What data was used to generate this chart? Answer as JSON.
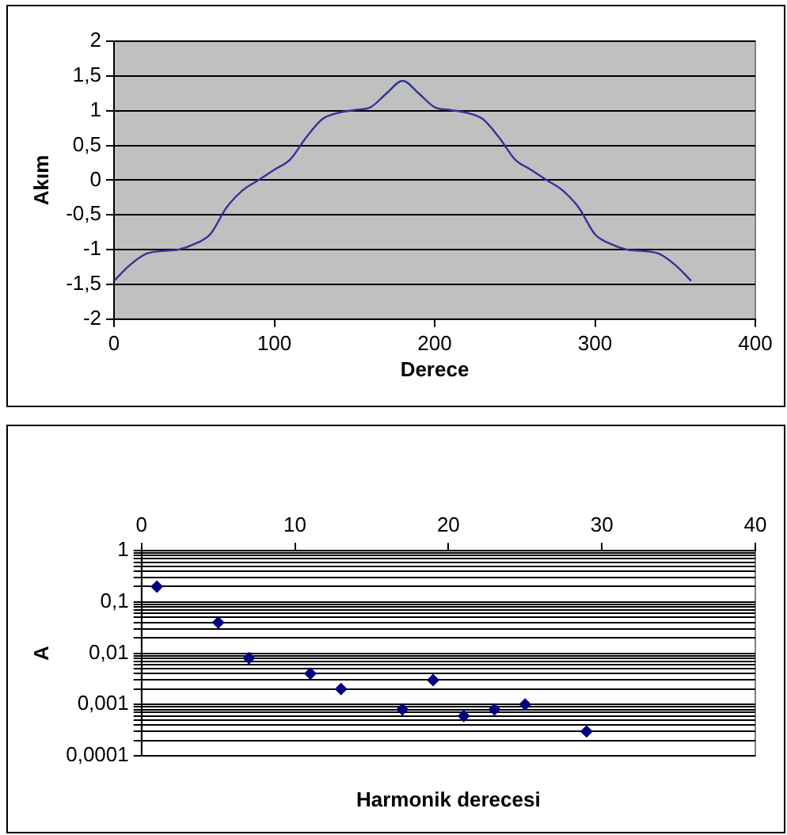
{
  "chart_data": [
    {
      "type": "line",
      "xlabel": "Derece",
      "ylabel": "Akım",
      "grid": "y",
      "legend": false,
      "marker": "none",
      "line_style": "solid",
      "xlim": [
        0,
        400
      ],
      "xticks": [
        0,
        100,
        200,
        300,
        400
      ],
      "ylim": [
        -2,
        2
      ],
      "yticks": [
        {
          "value": -2,
          "label": "-2"
        },
        {
          "value": -1.5,
          "label": "-1,5"
        },
        {
          "value": -1,
          "label": "-1"
        },
        {
          "value": -0.5,
          "label": "-0,5"
        },
        {
          "value": 0,
          "label": "0"
        },
        {
          "value": 0.5,
          "label": "0,5"
        },
        {
          "value": 1,
          "label": "1"
        },
        {
          "value": 1.5,
          "label": "1,5"
        },
        {
          "value": 2,
          "label": "2"
        }
      ],
      "x": [
        0,
        10,
        20,
        30,
        40,
        50,
        60,
        70,
        80,
        90,
        100,
        110,
        120,
        130,
        140,
        150,
        160,
        170,
        180,
        190,
        200,
        210,
        220,
        230,
        240,
        250,
        260,
        270,
        280,
        290,
        300,
        310,
        320,
        330,
        340,
        350,
        360
      ],
      "series": [
        {
          "color": "#333399",
          "values": [
            -1.45,
            -1.22,
            -1.06,
            -1.02,
            -1.0,
            -0.92,
            -0.78,
            -0.4,
            -0.15,
            0,
            0.15,
            0.3,
            0.62,
            0.88,
            0.97,
            1.01,
            1.05,
            1.25,
            1.43,
            1.25,
            1.05,
            1.01,
            0.97,
            0.88,
            0.62,
            0.3,
            0.15,
            0,
            -0.15,
            -0.4,
            -0.78,
            -0.92,
            -1.0,
            -1.02,
            -1.06,
            -1.22,
            -1.45
          ]
        }
      ]
    },
    {
      "type": "scatter",
      "xlabel": "Harmonik derecesi",
      "ylabel": "A",
      "grid": "y",
      "legend": false,
      "marker": "diamond",
      "log": "y",
      "xlim": [
        0,
        40
      ],
      "xticks": [
        0,
        10,
        20,
        30,
        40
      ],
      "ylim": [
        0.0001,
        1
      ],
      "yticks": [
        {
          "value": 0.0001,
          "label": "0,0001"
        },
        {
          "value": 0.0002,
          "label": null
        },
        {
          "value": 0.0003,
          "label": null
        },
        {
          "value": 0.0004,
          "label": null
        },
        {
          "value": 0.0005,
          "label": null
        },
        {
          "value": 0.0006,
          "label": null
        },
        {
          "value": 0.0007,
          "label": null
        },
        {
          "value": 0.0008,
          "label": null
        },
        {
          "value": 0.0009,
          "label": null
        },
        {
          "value": 0.001,
          "label": "0,001"
        },
        {
          "value": 0.002,
          "label": null
        },
        {
          "value": 0.003,
          "label": null
        },
        {
          "value": 0.004,
          "label": null
        },
        {
          "value": 0.005,
          "label": null
        },
        {
          "value": 0.006,
          "label": null
        },
        {
          "value": 0.007,
          "label": null
        },
        {
          "value": 0.008,
          "label": null
        },
        {
          "value": 0.009,
          "label": null
        },
        {
          "value": 0.01,
          "label": "0,01"
        },
        {
          "value": 0.02,
          "label": null
        },
        {
          "value": 0.03,
          "label": null
        },
        {
          "value": 0.04,
          "label": null
        },
        {
          "value": 0.05,
          "label": null
        },
        {
          "value": 0.06,
          "label": null
        },
        {
          "value": 0.07,
          "label": null
        },
        {
          "value": 0.08,
          "label": null
        },
        {
          "value": 0.09,
          "label": null
        },
        {
          "value": 0.1,
          "label": "0,1"
        },
        {
          "value": 0.2,
          "label": null
        },
        {
          "value": 0.3,
          "label": null
        },
        {
          "value": 0.4,
          "label": null
        },
        {
          "value": 0.5,
          "label": null
        },
        {
          "value": 0.6,
          "label": null
        },
        {
          "value": 0.7,
          "label": null
        },
        {
          "value": 0.8,
          "label": null
        },
        {
          "value": 0.9,
          "label": null
        },
        {
          "value": 1,
          "label": "1"
        }
      ],
      "x": [
        1,
        5,
        7,
        11,
        13,
        17,
        19,
        21,
        23,
        25,
        29
      ],
      "series": [
        {
          "color": "#000080",
          "values": [
            0.2,
            0.04,
            0.008,
            0.004,
            0.002,
            0.0008,
            0.003,
            0.0006,
            0.0008,
            0.001,
            0.0003
          ]
        }
      ]
    }
  ]
}
